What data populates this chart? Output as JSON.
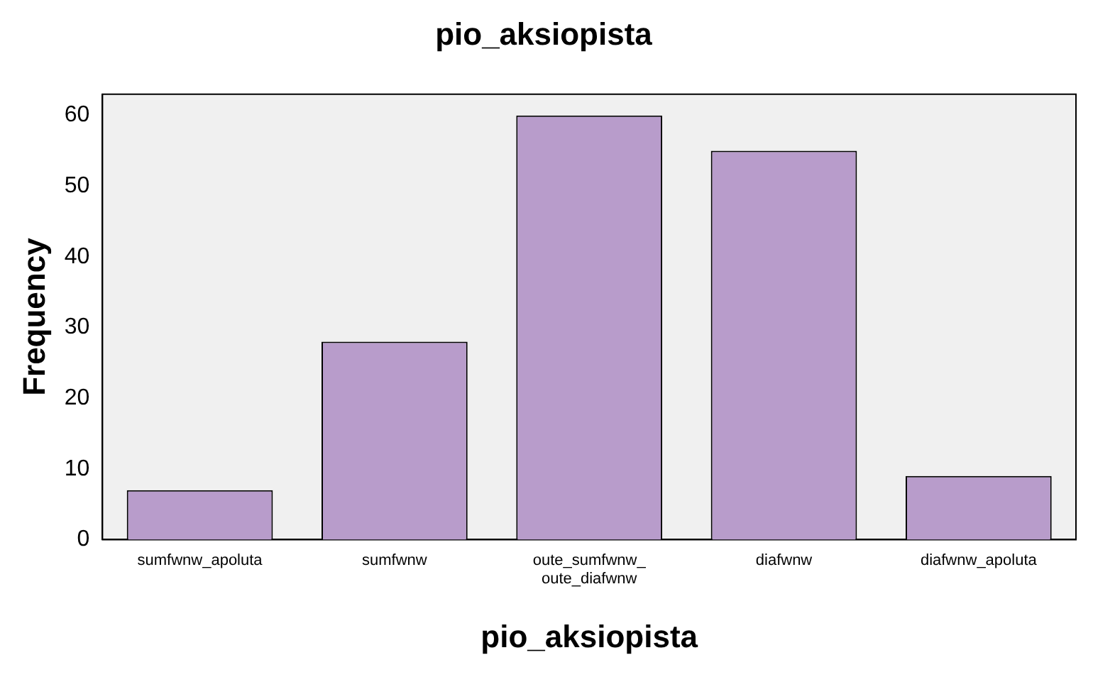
{
  "chart_data": {
    "type": "bar",
    "title": "pio_aksiopista",
    "xlabel": "pio_aksiopista",
    "ylabel": "Frequency",
    "categories": [
      "sumfwnw_apoluta",
      "sumfwnw",
      "oute_sumfwnw_oute_diafwnw",
      "diafwnw",
      "diafwnw_apoluta"
    ],
    "values": [
      7,
      28,
      60,
      55,
      9
    ],
    "color": "#b89ccb",
    "ylim": [
      0,
      63
    ],
    "yticks": [
      0,
      10,
      20,
      30,
      40,
      50,
      60
    ],
    "grid": false,
    "legend": false
  }
}
